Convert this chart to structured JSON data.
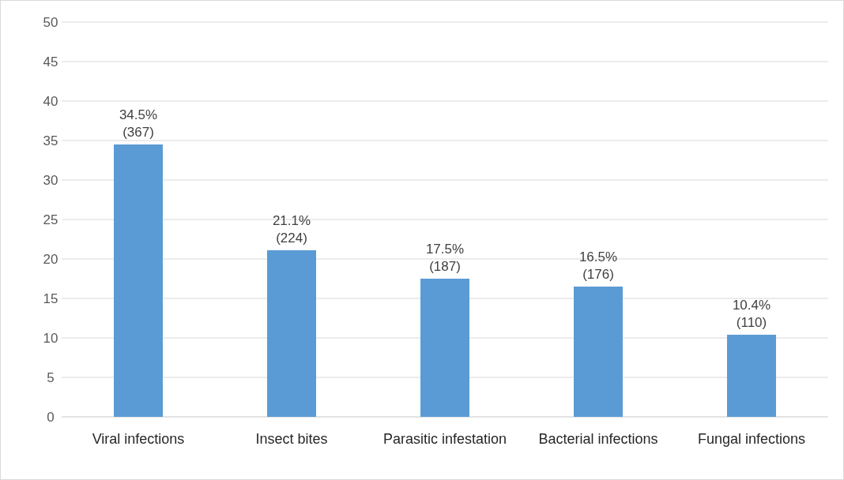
{
  "chart_data": {
    "type": "bar",
    "categories": [
      "Viral infections",
      "Insect bites",
      "Parasitic infestation",
      "Bacterial infections",
      "Fungal infections"
    ],
    "values": [
      34.5,
      21.1,
      17.5,
      16.5,
      10.4
    ],
    "value_labels": [
      "34.5%\n(367)",
      "21.1%\n(224)",
      "17.5%\n(187)",
      "16.5%\n(176)",
      "10.4%\n(110)"
    ],
    "color": "#5b9bd5",
    "ylim": [
      0,
      50
    ],
    "yticks": [
      0,
      5,
      10,
      15,
      20,
      25,
      30,
      35,
      40,
      45,
      50
    ],
    "grid": "y"
  }
}
